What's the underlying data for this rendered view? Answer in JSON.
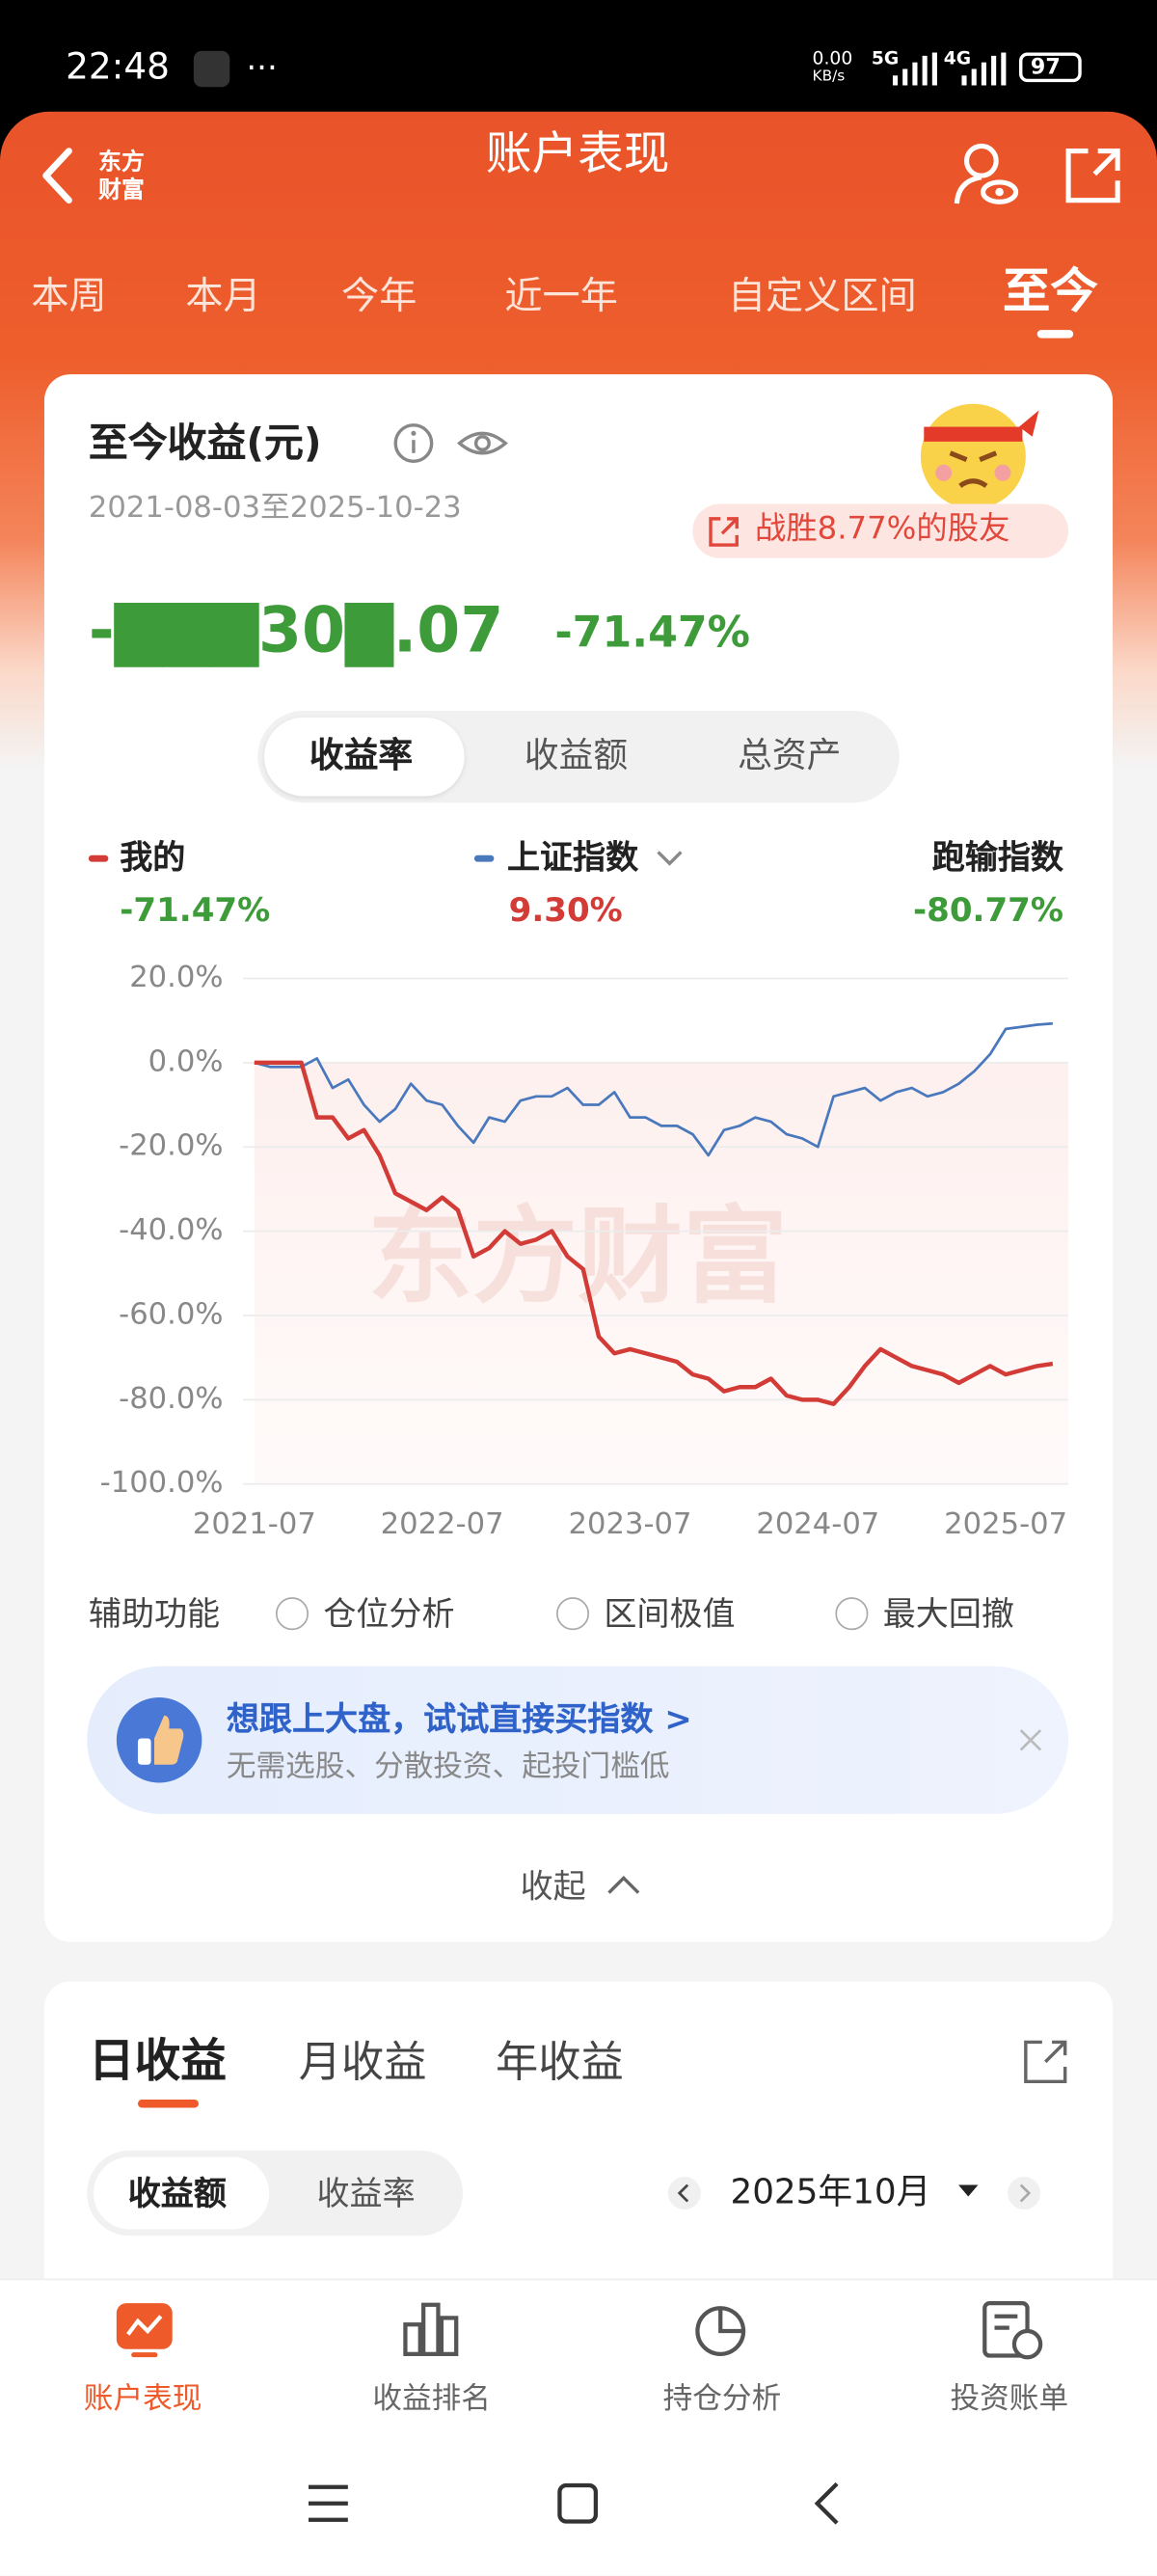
{
  "status_bar": {
    "time": "22:48",
    "speed": "0.00",
    "speed_unit": "KB/s",
    "net1": "5G",
    "net2": "4G",
    "battery": "97"
  },
  "header": {
    "logo_line1": "东方",
    "logo_line2": "财富",
    "title": "账户表现"
  },
  "tabs": [
    "本周",
    "本月",
    "今年",
    "近一年",
    "自定义区间",
    "至今"
  ],
  "summary": {
    "title": "至今收益(元)",
    "period": "2021-08-03至2025-10-23",
    "badge": "战胜8.77%的股友",
    "amount": "-▇▇▇30▇.07",
    "rate": "-71.47%"
  },
  "segments": [
    "收益率",
    "收益额",
    "总资产"
  ],
  "chart_data": {
    "type": "line",
    "watermark": "东方财富",
    "x": [
      "2021-07",
      "2021-08",
      "2021-09",
      "2021-10",
      "2021-11",
      "2021-12",
      "2022-01",
      "2022-02",
      "2022-03",
      "2022-04",
      "2022-05",
      "2022-06",
      "2022-07",
      "2022-08",
      "2022-09",
      "2022-10",
      "2022-11",
      "2022-12",
      "2023-01",
      "2023-02",
      "2023-03",
      "2023-04",
      "2023-05",
      "2023-06",
      "2023-07",
      "2023-08",
      "2023-09",
      "2023-10",
      "2023-11",
      "2023-12",
      "2024-01",
      "2024-02",
      "2024-03",
      "2024-04",
      "2024-05",
      "2024-06",
      "2024-07",
      "2024-08",
      "2024-09",
      "2024-10",
      "2024-11",
      "2024-12",
      "2025-01",
      "2025-02",
      "2025-03",
      "2025-04",
      "2025-05",
      "2025-06",
      "2025-07",
      "2025-08",
      "2025-09",
      "2025-10"
    ],
    "series": [
      {
        "name": "我的",
        "color": "#d23b36",
        "return": "-71.47%",
        "values": [
          0,
          0,
          0,
          0,
          -13,
          -13,
          -18,
          -16,
          -22,
          -31,
          -33,
          -35,
          -32,
          -35,
          -46,
          -44,
          -40,
          -43,
          -42,
          -40,
          -46,
          -49,
          -65,
          -69,
          -68,
          -69,
          -70,
          -71,
          -74,
          -75,
          -78,
          -77,
          -77,
          -75,
          -79,
          -80,
          -80,
          -81,
          -77,
          -72,
          -68,
          -70,
          -72,
          -73,
          -74,
          -76,
          -74,
          -72,
          -74,
          -73,
          -72,
          -71.47
        ]
      },
      {
        "name": "上证指数",
        "color": "#4a78bd",
        "return": "9.30%",
        "values": [
          0,
          -1,
          -1,
          -1,
          1,
          -6,
          -4,
          -10,
          -14,
          -11,
          -5,
          -9,
          -10,
          -15,
          -19,
          -13,
          -14,
          -9,
          -8,
          -8,
          -6,
          -10,
          -10,
          -7,
          -13,
          -13,
          -15,
          -15,
          -17,
          -22,
          -16,
          -15,
          -13,
          -14,
          -17,
          -18,
          -20,
          -8,
          -7,
          -6,
          -9,
          -7,
          -6,
          -8,
          -7,
          -5,
          -2,
          2,
          8,
          8.5,
          9,
          9.3
        ]
      }
    ],
    "underperform": {
      "label": "跑输指数",
      "value": "-80.77%"
    },
    "xlim": [
      "2021-07",
      "2025-11"
    ],
    "xticks": [
      "2021-07",
      "2022-07",
      "2023-07",
      "2024-07",
      "2025-07"
    ],
    "ylim": [
      -100,
      20
    ],
    "yticks": [
      {
        "value": 20,
        "label": "20.0%"
      },
      {
        "value": 0,
        "label": "0.0%"
      },
      {
        "value": -20,
        "label": "-20.0%"
      },
      {
        "value": -40,
        "label": "-40.0%"
      },
      {
        "value": -60,
        "label": "-60.0%"
      },
      {
        "value": -80,
        "label": "-80.0%"
      },
      {
        "value": -100,
        "label": "-100.0%"
      }
    ],
    "grid": true
  },
  "aux": {
    "label": "辅助功能",
    "options": [
      "仓位分析",
      "区间极值",
      "最大回撤"
    ]
  },
  "promo": {
    "title": "想跟上大盘，试试直接买指数 >",
    "subtitle": "无需选股、分散投资、起投门槛低"
  },
  "collapse": "收起",
  "daily": {
    "tabs": [
      "日收益",
      "月收益",
      "年收益"
    ],
    "segments": [
      "收益额",
      "收益率"
    ],
    "month": "2025年10月"
  },
  "bottom_nav": [
    "账户表现",
    "收益排名",
    "持仓分析",
    "投资账单"
  ]
}
